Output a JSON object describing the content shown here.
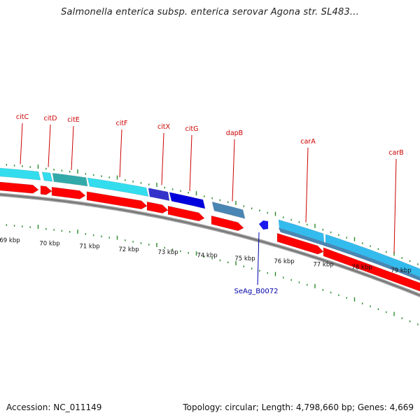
{
  "header": {
    "title": "Salmonella enterica subsp. enterica serovar Agona str. SL483..."
  },
  "footer": {
    "accession": "Accession: NC_011149",
    "summary": "Topology: circular; Length: 4,798,660 bp; Genes: 4,669"
  },
  "colors": {
    "forward_cds": "#ff0000",
    "track_cyan": "#33ddee",
    "track_teal": "#33aaaa",
    "track_blue": "#0000dd",
    "track_steel": "#4a86b4",
    "track_sky": "#33bbee",
    "backbone": "#808080",
    "tick_green": "#2a8a2a",
    "gene_label": "#cc0000",
    "feature_label": "#0000aa"
  },
  "map": {
    "gene_labels": [
      {
        "label": "citC",
        "icon": "gene-pointer"
      },
      {
        "label": "citD",
        "icon": "gene-pointer"
      },
      {
        "label": "citE",
        "icon": "gene-pointer"
      },
      {
        "label": "citF",
        "icon": "gene-pointer"
      },
      {
        "label": "citX",
        "icon": "gene-pointer"
      },
      {
        "label": "citG",
        "icon": "gene-pointer"
      },
      {
        "label": "dapB",
        "icon": "gene-pointer"
      },
      {
        "label": "carA",
        "icon": "gene-pointer"
      },
      {
        "label": "carB",
        "icon": "gene-pointer"
      }
    ],
    "scale_labels": [
      "69 kbp",
      "70 kbp",
      "71 kbp",
      "72 kbp",
      "73 kbp",
      "74 kbp",
      "75 kbp",
      "76 kbp",
      "77 kbp",
      "78 kbp",
      "79 kbp"
    ],
    "feature_labels": [
      {
        "label": "SeAg_B0072",
        "icon": "reverse-feature-arrow"
      }
    ]
  }
}
